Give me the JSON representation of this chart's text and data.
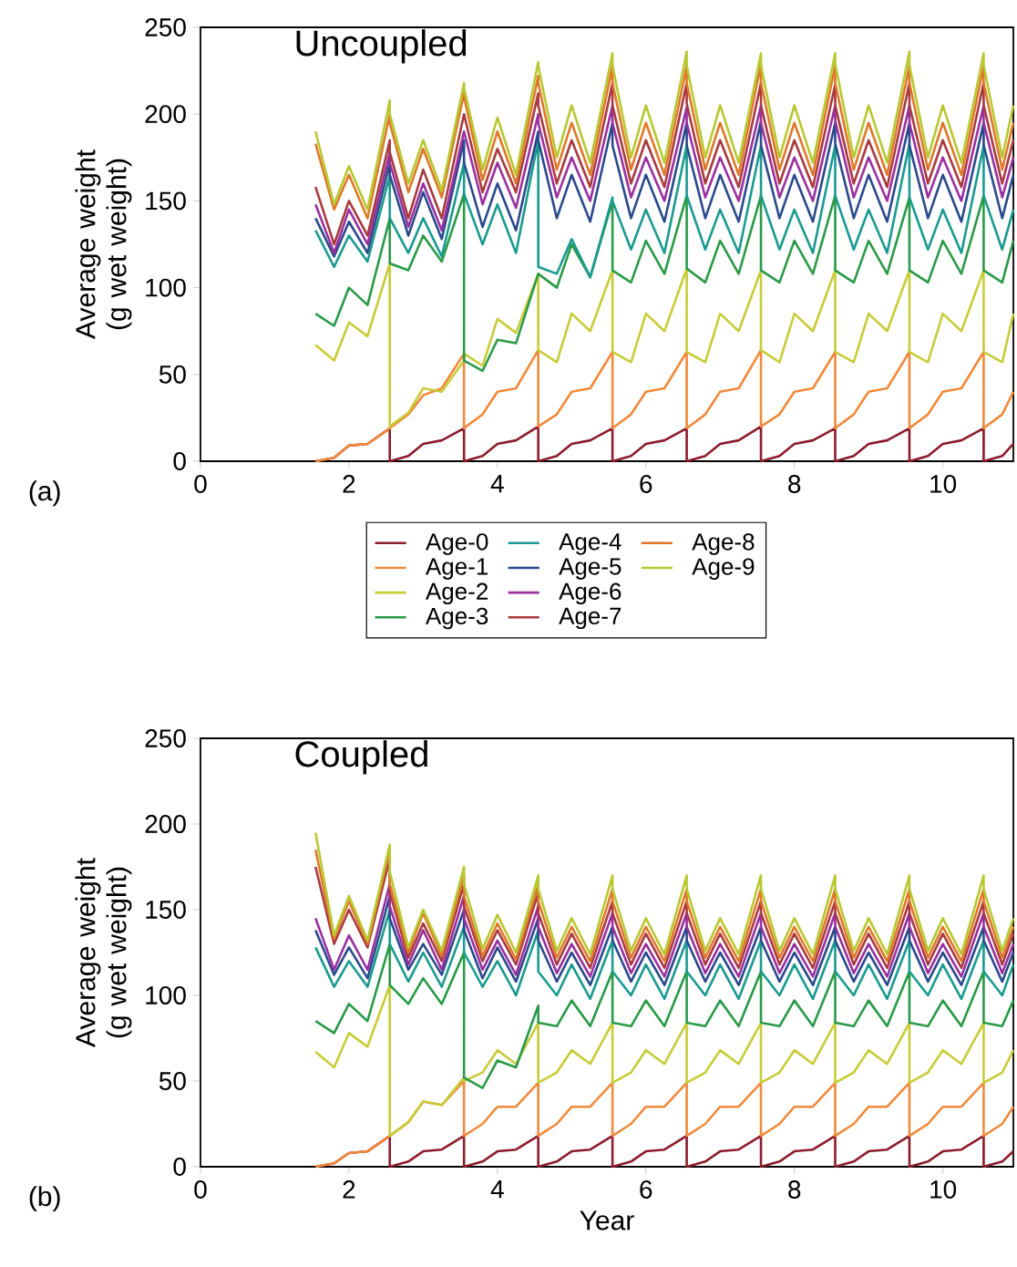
{
  "chart_data": [
    {
      "type": "line",
      "title": "Uncoupled",
      "ylabel": "Average weight (g wet weight)",
      "annotations": [
        "(a)"
      ],
      "legend": "bottom",
      "xlim": [
        0,
        10.95
      ],
      "ylim": [
        0,
        250
      ],
      "xticks": [
        0,
        2,
        4,
        6,
        8,
        10
      ],
      "yticks": [
        0,
        50,
        100,
        150,
        200,
        250
      ],
      "x": [
        1.55,
        1.8,
        2.0,
        2.25,
        2.55,
        2.55,
        2.8,
        3.0,
        3.25,
        3.55,
        3.55,
        3.8,
        4.0,
        4.25,
        4.55,
        4.55,
        4.8,
        5.0,
        5.25,
        5.55,
        5.55,
        5.8,
        6.0,
        6.25,
        6.55,
        6.55,
        6.8,
        7.0,
        7.25,
        7.55,
        7.55,
        7.8,
        8.0,
        8.25,
        8.55,
        8.55,
        8.8,
        9.0,
        9.25,
        9.55,
        9.55,
        9.8,
        10.0,
        10.25,
        10.55,
        10.55,
        10.8,
        10.95
      ],
      "series": [
        {
          "name": "Age-0",
          "color": "#8b1c2c",
          "values": [
            0,
            2,
            9,
            10,
            19,
            0,
            3,
            10,
            12,
            19,
            0,
            3,
            10,
            12,
            20,
            0,
            3,
            10,
            12,
            19,
            0,
            3,
            10,
            12,
            19,
            0,
            3,
            10,
            12,
            20,
            0,
            3,
            10,
            12,
            19,
            0,
            3,
            10,
            12,
            19,
            0,
            3,
            10,
            12,
            19,
            0,
            3,
            10
          ]
        },
        {
          "name": "Age-1",
          "color": "#f08a3c",
          "values": [
            0,
            2,
            9,
            10,
            19,
            19,
            27,
            38,
            42,
            62,
            19,
            27,
            40,
            42,
            64,
            20,
            27,
            40,
            42,
            63,
            19,
            27,
            40,
            42,
            63,
            19,
            27,
            40,
            42,
            64,
            20,
            27,
            40,
            42,
            63,
            19,
            27,
            40,
            42,
            63,
            19,
            27,
            40,
            42,
            63,
            19,
            27,
            40
          ]
        },
        {
          "name": "Age-2",
          "color": "#c8cc38",
          "values": [
            67,
            58,
            80,
            72,
            114,
            20,
            28,
            42,
            40,
            58,
            62,
            55,
            82,
            74,
            108,
            64,
            57,
            85,
            75,
            110,
            63,
            57,
            85,
            75,
            111,
            63,
            57,
            85,
            75,
            110,
            64,
            57,
            85,
            75,
            110,
            63,
            57,
            85,
            75,
            110,
            63,
            57,
            85,
            75,
            110,
            63,
            57,
            85
          ]
        },
        {
          "name": "Age-3",
          "color": "#2a9a48",
          "values": [
            85,
            78,
            100,
            90,
            140,
            114,
            110,
            130,
            115,
            154,
            58,
            52,
            70,
            68,
            108,
            108,
            100,
            125,
            106,
            150,
            110,
            103,
            127,
            108,
            153,
            111,
            103,
            127,
            108,
            153,
            110,
            103,
            127,
            108,
            153,
            110,
            103,
            127,
            108,
            152,
            110,
            103,
            127,
            108,
            153,
            110,
            103,
            127
          ]
        },
        {
          "name": "Age-4",
          "color": "#1a9a90",
          "values": [
            133,
            112,
            130,
            115,
            165,
            140,
            120,
            140,
            118,
            172,
            154,
            125,
            148,
            120,
            185,
            112,
            108,
            128,
            106,
            152,
            150,
            122,
            145,
            120,
            182,
            153,
            122,
            145,
            120,
            182,
            153,
            122,
            145,
            120,
            182,
            153,
            122,
            145,
            120,
            183,
            152,
            122,
            145,
            120,
            182,
            153,
            122,
            145
          ]
        },
        {
          "name": "Age-5",
          "color": "#2a4a8c",
          "values": [
            140,
            118,
            138,
            120,
            172,
            165,
            130,
            155,
            128,
            185,
            172,
            135,
            160,
            133,
            190,
            185,
            140,
            165,
            138,
            195,
            182,
            140,
            165,
            138,
            195,
            182,
            140,
            165,
            138,
            196,
            182,
            140,
            165,
            138,
            195,
            183,
            140,
            165,
            138,
            195,
            182,
            140,
            165,
            138,
            195,
            182,
            140,
            165
          ]
        },
        {
          "name": "Age-6",
          "color": "#9a30a0",
          "values": [
            148,
            120,
            145,
            125,
            178,
            172,
            135,
            160,
            133,
            190,
            190,
            148,
            172,
            146,
            200,
            195,
            152,
            175,
            150,
            205,
            195,
            152,
            175,
            150,
            204,
            195,
            152,
            175,
            150,
            205,
            195,
            152,
            175,
            150,
            205,
            196,
            152,
            175,
            150,
            205,
            195,
            152,
            175,
            150,
            205,
            195,
            152,
            175
          ]
        },
        {
          "name": "Age-7",
          "color": "#a83a40",
          "values": [
            158,
            125,
            150,
            130,
            185,
            178,
            140,
            168,
            140,
            200,
            200,
            155,
            180,
            155,
            212,
            205,
            160,
            185,
            158,
            218,
            205,
            160,
            185,
            158,
            218,
            206,
            160,
            185,
            158,
            218,
            205,
            160,
            185,
            158,
            217,
            205,
            160,
            185,
            158,
            218,
            205,
            160,
            185,
            158,
            218,
            205,
            160,
            185
          ]
        },
        {
          "name": "Age-8",
          "color": "#e07828",
          "values": [
            183,
            145,
            165,
            140,
            200,
            195,
            155,
            180,
            152,
            212,
            210,
            162,
            190,
            160,
            222,
            218,
            168,
            195,
            165,
            228,
            218,
            168,
            195,
            165,
            228,
            218,
            168,
            195,
            165,
            229,
            218,
            168,
            195,
            165,
            228,
            218,
            168,
            195,
            165,
            228,
            218,
            168,
            195,
            165,
            228,
            218,
            168,
            195
          ]
        },
        {
          "name": "Age-9",
          "color": "#b8c830",
          "values": [
            190,
            148,
            170,
            145,
            208,
            200,
            160,
            185,
            156,
            218,
            215,
            168,
            198,
            165,
            230,
            228,
            175,
            205,
            172,
            235,
            228,
            175,
            205,
            172,
            236,
            228,
            175,
            205,
            172,
            235,
            228,
            175,
            205,
            172,
            235,
            229,
            175,
            205,
            172,
            236,
            228,
            175,
            205,
            172,
            235,
            228,
            175,
            205
          ]
        }
      ]
    },
    {
      "type": "line",
      "title": "Coupled",
      "xlabel": "Year",
      "ylabel": "Average weight (g wet weight)",
      "annotations": [
        "(b)"
      ],
      "xlim": [
        0,
        10.95
      ],
      "ylim": [
        0,
        250
      ],
      "xticks": [
        0,
        2,
        4,
        6,
        8,
        10
      ],
      "yticks": [
        0,
        50,
        100,
        150,
        200,
        250
      ],
      "x": [
        1.55,
        1.8,
        2.0,
        2.25,
        2.55,
        2.55,
        2.8,
        3.0,
        3.25,
        3.55,
        3.55,
        3.8,
        4.0,
        4.25,
        4.55,
        4.55,
        4.8,
        5.0,
        5.25,
        5.55,
        5.55,
        5.8,
        6.0,
        6.25,
        6.55,
        6.55,
        6.8,
        7.0,
        7.25,
        7.55,
        7.55,
        7.8,
        8.0,
        8.25,
        8.55,
        8.55,
        8.8,
        9.0,
        9.25,
        9.55,
        9.55,
        9.8,
        10.0,
        10.25,
        10.55,
        10.55,
        10.8,
        10.95
      ],
      "series": [
        {
          "color": "#8b1c2c",
          "values": [
            0,
            2,
            8,
            9,
            18,
            0,
            3,
            9,
            10,
            18,
            0,
            3,
            9,
            10,
            18,
            0,
            3,
            9,
            10,
            18,
            0,
            3,
            9,
            10,
            18,
            0,
            3,
            9,
            10,
            18,
            0,
            3,
            9,
            10,
            18,
            0,
            3,
            9,
            10,
            18,
            0,
            3,
            9,
            10,
            18,
            0,
            3,
            9
          ]
        },
        {
          "color": "#f08a3c",
          "values": [
            0,
            2,
            8,
            9,
            18,
            18,
            26,
            38,
            36,
            50,
            18,
            25,
            35,
            35,
            49,
            18,
            25,
            35,
            35,
            49,
            18,
            25,
            35,
            35,
            49,
            18,
            25,
            35,
            35,
            49,
            18,
            25,
            35,
            35,
            49,
            18,
            25,
            35,
            35,
            49,
            18,
            25,
            35,
            35,
            49,
            18,
            25,
            35
          ]
        },
        {
          "color": "#c8cc38",
          "values": [
            67,
            58,
            78,
            70,
            106,
            18,
            26,
            38,
            36,
            52,
            50,
            55,
            68,
            60,
            84,
            49,
            55,
            68,
            60,
            84,
            49,
            55,
            68,
            60,
            84,
            49,
            55,
            68,
            60,
            84,
            49,
            55,
            68,
            60,
            84,
            49,
            55,
            68,
            60,
            84,
            49,
            55,
            68,
            60,
            84,
            49,
            55,
            68
          ]
        },
        {
          "color": "#2a9a48",
          "values": [
            85,
            78,
            95,
            85,
            130,
            106,
            95,
            110,
            95,
            125,
            52,
            46,
            62,
            58,
            94,
            84,
            82,
            97,
            82,
            114,
            84,
            82,
            97,
            82,
            114,
            84,
            82,
            97,
            82,
            114,
            84,
            82,
            97,
            82,
            114,
            84,
            82,
            97,
            82,
            114,
            84,
            82,
            97,
            82,
            114,
            84,
            82,
            97
          ]
        },
        {
          "color": "#1a9a90",
          "values": [
            128,
            105,
            120,
            105,
            150,
            130,
            108,
            125,
            105,
            140,
            125,
            105,
            120,
            100,
            138,
            114,
            100,
            118,
            98,
            132,
            114,
            100,
            118,
            98,
            132,
            114,
            100,
            118,
            98,
            132,
            114,
            100,
            118,
            98,
            132,
            114,
            100,
            118,
            98,
            132,
            114,
            100,
            118,
            98,
            132,
            114,
            100,
            118
          ]
        },
        {
          "color": "#2a4a8c",
          "values": [
            138,
            112,
            128,
            110,
            158,
            145,
            115,
            130,
            112,
            150,
            138,
            110,
            128,
            108,
            145,
            132,
            108,
            125,
            106,
            140,
            132,
            108,
            125,
            106,
            140,
            132,
            108,
            125,
            106,
            140,
            132,
            108,
            125,
            106,
            140,
            132,
            108,
            125,
            106,
            140,
            132,
            108,
            125,
            106,
            140,
            132,
            108,
            125
          ]
        },
        {
          "color": "#9a30a0",
          "values": [
            145,
            115,
            135,
            115,
            165,
            152,
            118,
            138,
            115,
            158,
            145,
            115,
            132,
            112,
            152,
            140,
            113,
            130,
            111,
            148,
            140,
            113,
            130,
            111,
            148,
            140,
            113,
            130,
            111,
            148,
            140,
            113,
            130,
            111,
            148,
            140,
            113,
            130,
            111,
            148,
            140,
            113,
            130,
            111,
            148,
            140,
            113,
            130
          ]
        },
        {
          "color": "#a83a40",
          "values": [
            175,
            130,
            150,
            128,
            180,
            160,
            122,
            142,
            120,
            165,
            152,
            120,
            138,
            118,
            160,
            148,
            118,
            136,
            116,
            155,
            148,
            118,
            136,
            116,
            155,
            148,
            118,
            136,
            116,
            155,
            148,
            118,
            136,
            116,
            155,
            148,
            118,
            136,
            116,
            155,
            148,
            118,
            136,
            116,
            155,
            148,
            118,
            136
          ]
        },
        {
          "color": "#e07828",
          "values": [
            185,
            133,
            155,
            130,
            185,
            165,
            125,
            148,
            123,
            170,
            158,
            123,
            142,
            121,
            165,
            155,
            122,
            140,
            120,
            162,
            155,
            122,
            140,
            120,
            162,
            155,
            122,
            140,
            120,
            162,
            155,
            122,
            140,
            120,
            162,
            155,
            122,
            140,
            120,
            162,
            155,
            122,
            140,
            120,
            162,
            155,
            122,
            140
          ]
        },
        {
          "color": "#b8c830",
          "values": [
            195,
            135,
            158,
            132,
            188,
            172,
            128,
            150,
            126,
            175,
            165,
            127,
            147,
            125,
            170,
            162,
            126,
            145,
            124,
            170,
            162,
            126,
            145,
            124,
            170,
            162,
            126,
            145,
            124,
            170,
            162,
            126,
            145,
            124,
            170,
            162,
            126,
            145,
            124,
            170,
            162,
            126,
            145,
            124,
            170,
            162,
            126,
            145
          ]
        }
      ]
    }
  ]
}
